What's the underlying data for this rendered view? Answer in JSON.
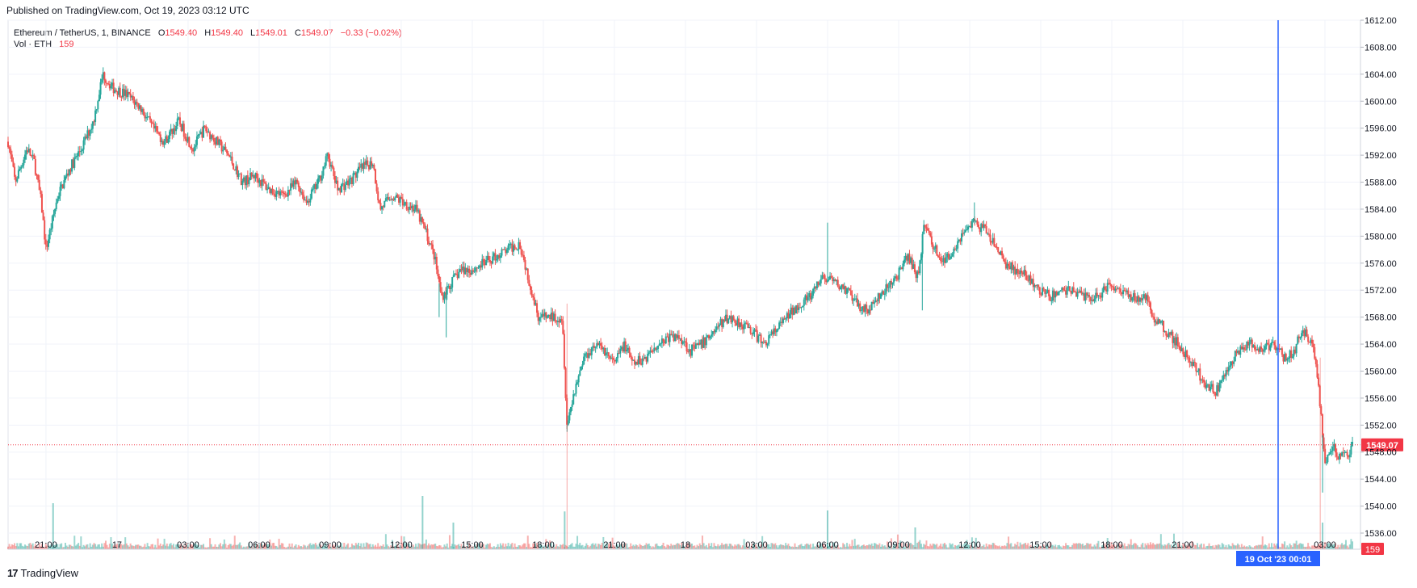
{
  "published": "Published on TradingView.com, Oct 19, 2023 03:12 UTC",
  "brand": {
    "logo_glyph": "17",
    "name": "TradingView",
    "icon": "tradingview-logo-icon"
  },
  "legend": {
    "symbol": "Ethereum / TetherUS, 1, BINANCE",
    "o_label": "O",
    "o_value": "1549.40",
    "h_label": "H",
    "h_value": "1549.40",
    "l_label": "L",
    "l_value": "1549.01",
    "c_label": "C",
    "c_value": "1549.07",
    "change": "−0.33 (−0.02%)",
    "vol_label": "Vol · ETH",
    "vol_value": "159"
  },
  "colors": {
    "up": "#26a69a",
    "down": "#ef5350",
    "grid": "#f0f3fa",
    "crosshair": "#2962ff",
    "price_line": "#f23645",
    "axis_text": "#131722"
  },
  "chart_data": {
    "type": "candlestick",
    "title": "Ethereum / TetherUS, 1, BINANCE",
    "ylim": [
      1536,
      1612
    ],
    "y_ticks": [
      "1612.00",
      "1608.00",
      "1604.00",
      "1600.00",
      "1596.00",
      "1592.00",
      "1588.00",
      "1584.00",
      "1580.00",
      "1576.00",
      "1572.00",
      "1568.00",
      "1564.00",
      "1560.00",
      "1556.00",
      "1552.00",
      "1548.00",
      "1544.00",
      "1540.00",
      "1536.00"
    ],
    "x_range_hours": [
      -4.6,
      27.1
    ],
    "x_ticks": [
      {
        "hours": -3,
        "label": "21:00"
      },
      {
        "hours": 0,
        "label": "17"
      },
      {
        "hours": 3,
        "label": "03:00"
      },
      {
        "hours": 6,
        "label": "06:00"
      },
      {
        "hours": 9,
        "label": "09:00"
      },
      {
        "hours": 12,
        "label": "12:00"
      },
      {
        "hours": 15,
        "label": "15:00"
      },
      {
        "hours": 18,
        "label": "18:00"
      },
      {
        "hours": 21,
        "label": "21:00"
      },
      {
        "hours": 24,
        "label": "18"
      },
      {
        "hours": 27,
        "label": "03:00"
      },
      {
        "hours": 30,
        "label": "06:00"
      },
      {
        "hours": 33,
        "label": "09:00"
      },
      {
        "hours": 36,
        "label": "12:00"
      },
      {
        "hours": 39,
        "label": "15:00"
      },
      {
        "hours": 42,
        "label": "18:00"
      },
      {
        "hours": 45,
        "label": "21:00"
      },
      {
        "hours": 51,
        "label": "03:00"
      }
    ],
    "price_path": [
      [
        -4.6,
        1594
      ],
      [
        -4.3,
        1588
      ],
      [
        -3.8,
        1593
      ],
      [
        -3.5,
        1591
      ],
      [
        -3.2,
        1585
      ],
      [
        -3.0,
        1578
      ],
      [
        -2.5,
        1586
      ],
      [
        -2.0,
        1590
      ],
      [
        -1.5,
        1593
      ],
      [
        -1.0,
        1597
      ],
      [
        -0.6,
        1604
      ],
      [
        -0.2,
        1602
      ],
      [
        0.4,
        1601
      ],
      [
        1.0,
        1599
      ],
      [
        1.5,
        1596
      ],
      [
        2.0,
        1594
      ],
      [
        2.6,
        1597
      ],
      [
        3.2,
        1593
      ],
      [
        3.7,
        1596
      ],
      [
        4.2,
        1594
      ],
      [
        4.7,
        1592
      ],
      [
        5.3,
        1588
      ],
      [
        5.8,
        1589
      ],
      [
        6.4,
        1587
      ],
      [
        7.0,
        1586
      ],
      [
        7.6,
        1588
      ],
      [
        8.0,
        1585
      ],
      [
        8.5,
        1588
      ],
      [
        8.9,
        1592
      ],
      [
        9.3,
        1587
      ],
      [
        9.8,
        1588
      ],
      [
        10.3,
        1590
      ],
      [
        10.8,
        1591
      ],
      [
        11.1,
        1584
      ],
      [
        11.6,
        1586
      ],
      [
        12.1,
        1585
      ],
      [
        12.6,
        1584
      ],
      [
        13.0,
        1581
      ],
      [
        13.4,
        1577
      ],
      [
        13.7,
        1571
      ],
      [
        14.1,
        1573
      ],
      [
        14.5,
        1575
      ],
      [
        15.0,
        1575
      ],
      [
        15.5,
        1576
      ],
      [
        16.0,
        1577
      ],
      [
        16.5,
        1578
      ],
      [
        17.0,
        1579
      ],
      [
        17.5,
        1572
      ],
      [
        17.8,
        1568
      ],
      [
        18.3,
        1568
      ],
      [
        18.8,
        1568
      ],
      [
        19.0,
        1552
      ],
      [
        19.3,
        1557
      ],
      [
        19.7,
        1562
      ],
      [
        20.2,
        1564
      ],
      [
        20.6,
        1563
      ],
      [
        21.0,
        1561
      ],
      [
        21.4,
        1564
      ],
      [
        21.8,
        1561
      ],
      [
        22.3,
        1562
      ],
      [
        22.8,
        1564
      ],
      [
        23.3,
        1565
      ],
      [
        23.8,
        1565
      ],
      [
        24.2,
        1563
      ],
      [
        24.7,
        1564
      ],
      [
        25.2,
        1566
      ],
      [
        25.8,
        1568
      ],
      [
        26.4,
        1567
      ],
      [
        26.8,
        1566
      ],
      [
        27.3,
        1564
      ],
      [
        27.8,
        1566
      ],
      [
        28.3,
        1568
      ],
      [
        28.8,
        1570
      ],
      [
        29.3,
        1571
      ],
      [
        29.8,
        1574
      ],
      [
        30.3,
        1573
      ],
      [
        30.8,
        1572
      ],
      [
        31.2,
        1570
      ],
      [
        31.7,
        1569
      ],
      [
        32.2,
        1571
      ],
      [
        32.7,
        1573
      ],
      [
        33.1,
        1575
      ],
      [
        33.4,
        1577
      ],
      [
        33.8,
        1574
      ],
      [
        34.1,
        1582
      ],
      [
        34.4,
        1579
      ],
      [
        34.9,
        1576
      ],
      [
        35.3,
        1578
      ],
      [
        35.8,
        1581
      ],
      [
        36.1,
        1582
      ],
      [
        36.6,
        1581
      ],
      [
        37.0,
        1579
      ],
      [
        37.5,
        1576
      ],
      [
        37.9,
        1575
      ],
      [
        38.4,
        1574
      ],
      [
        38.9,
        1572
      ],
      [
        39.4,
        1571
      ],
      [
        39.9,
        1572
      ],
      [
        40.4,
        1572
      ],
      [
        40.9,
        1571
      ],
      [
        41.4,
        1571
      ],
      [
        41.9,
        1573
      ],
      [
        42.4,
        1572
      ],
      [
        42.9,
        1571
      ],
      [
        43.4,
        1571
      ],
      [
        43.8,
        1568
      ],
      [
        44.3,
        1566
      ],
      [
        44.8,
        1564
      ],
      [
        45.2,
        1562
      ],
      [
        45.6,
        1560
      ],
      [
        46.0,
        1558
      ],
      [
        46.4,
        1557
      ],
      [
        46.9,
        1560
      ],
      [
        47.3,
        1563
      ],
      [
        47.8,
        1564
      ],
      [
        48.3,
        1563
      ],
      [
        48.8,
        1564
      ],
      [
        49.3,
        1562
      ],
      [
        49.7,
        1563
      ],
      [
        50.0,
        1566
      ],
      [
        50.3,
        1565
      ],
      [
        50.6,
        1562
      ],
      [
        50.8,
        1555
      ],
      [
        51.0,
        1546
      ],
      [
        51.3,
        1549
      ],
      [
        51.6,
        1547
      ],
      [
        52.0,
        1548
      ],
      [
        52.2,
        1549
      ]
    ],
    "spikes": [
      {
        "hours": -3.0,
        "low": 1578
      },
      {
        "hours": 13.6,
        "low": 1568
      },
      {
        "hours": 13.9,
        "low": 1565
      },
      {
        "hours": 19.0,
        "low": 1551
      },
      {
        "hours": 30.0,
        "high": 1582
      },
      {
        "hours": 33.8,
        "high": 1574
      },
      {
        "hours": 34.0,
        "low": 1569
      },
      {
        "hours": 36.2,
        "high": 1585
      },
      {
        "hours": 50.9,
        "low": 1542
      }
    ],
    "volume_spikes": [
      {
        "hours": -2.7,
        "rel": 0.95
      },
      {
        "hours": 12.9,
        "rel": 1.1
      },
      {
        "hours": 14.2,
        "rel": 0.55
      },
      {
        "hours": 18.9,
        "rel": 0.78
      },
      {
        "hours": 30.0,
        "rel": 0.8
      },
      {
        "hours": 33.7,
        "rel": 0.45
      },
      {
        "hours": 50.9,
        "rel": 0.55
      }
    ],
    "last_price": 1549.07,
    "last_price_label": "1549.07",
    "last_volume_label": "159",
    "crosshair": {
      "hours": 48.0,
      "label": "19 Oct '23   00:01"
    }
  }
}
